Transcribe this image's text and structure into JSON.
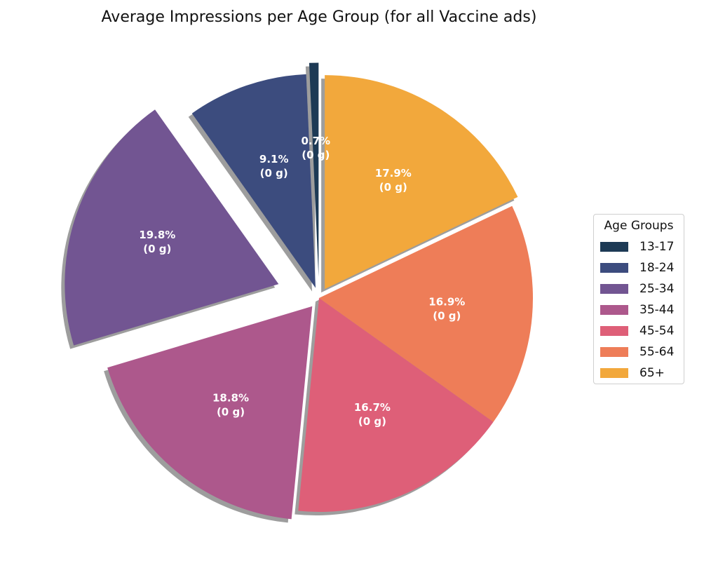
{
  "chart_data": {
    "type": "pie",
    "title": "Average Impressions per Age Group (for all Vaccine ads)",
    "legend_title": "Age Groups",
    "legend_position": "right",
    "categories": [
      "13-17",
      "18-24",
      "25-34",
      "35-44",
      "45-54",
      "55-64",
      "65+"
    ],
    "values": [
      0.7,
      9.1,
      19.8,
      18.8,
      16.7,
      16.9,
      17.9
    ],
    "labels": [
      [
        "0.7%",
        "(0 g)"
      ],
      [
        "9.1%",
        "(0 g)"
      ],
      [
        "19.8%",
        "(0 g)"
      ],
      [
        "18.8%",
        "(0 g)"
      ],
      [
        "16.7%",
        "(0 g)"
      ],
      [
        "16.9%",
        "(0 g)"
      ],
      [
        "17.9%",
        "(0 g)"
      ]
    ],
    "colors": [
      "#1d3a55",
      "#3c4c7e",
      "#725592",
      "#ad588c",
      "#de5f78",
      "#ee7d58",
      "#f2a83c"
    ],
    "explode": [
      0.1,
      0.05,
      0.2,
      0.05,
      0,
      0,
      0.05
    ],
    "shadow": true,
    "direction": "counterclockwise"
  }
}
